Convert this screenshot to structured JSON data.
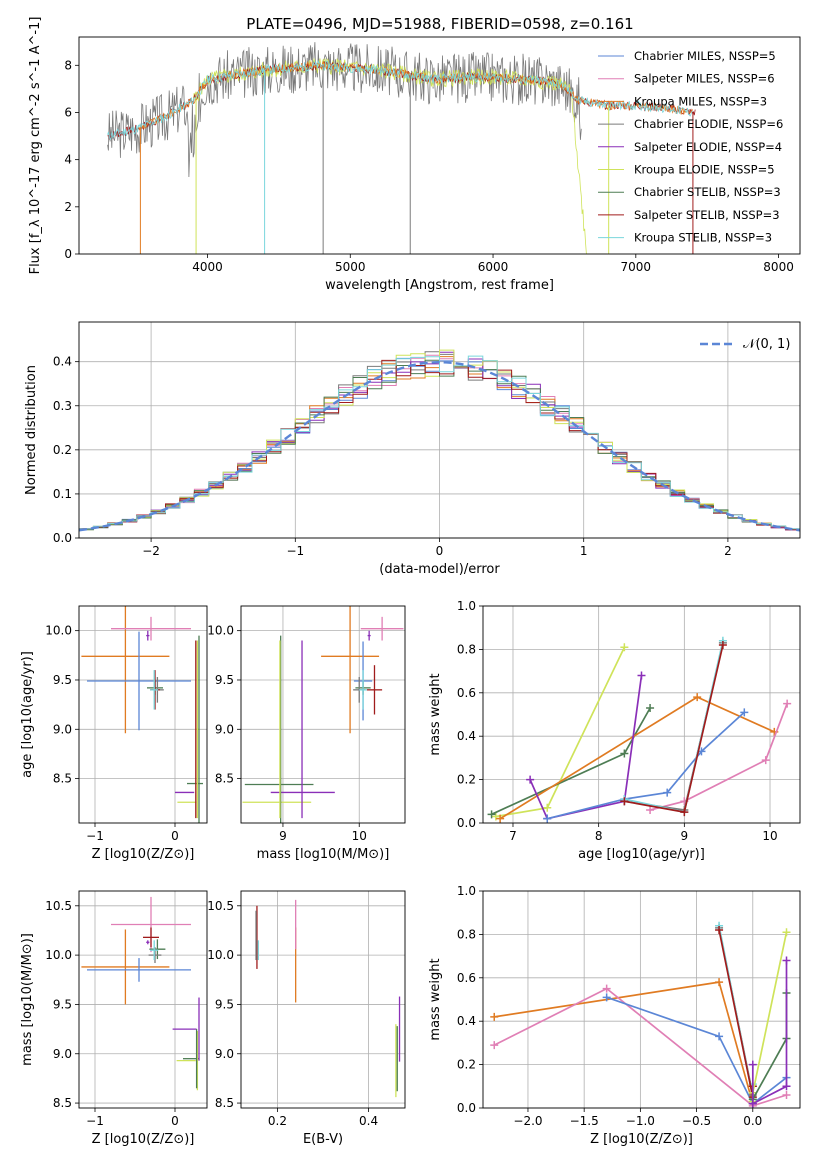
{
  "title": "PLATE=0496, MJD=51988, FIBERID=0598, z=0.161",
  "colors": {
    "chabrier_miles": "#5b86d6",
    "salpeter_miles": "#e07fb5",
    "kroupa_miles": "#e07b22",
    "chabrier_elodie": "#7a7a7a",
    "salpeter_elodie": "#8a2fb8",
    "kroupa_elodie": "#cfe35a",
    "chabrier_stelib": "#4e7d54",
    "salpeter_stelib": "#a01c1c",
    "kroupa_stelib": "#7ad6dc",
    "grid": "#b0b0b0",
    "normal_curve": "#5b86d6"
  },
  "chart_data": [
    {
      "type": "line",
      "panel": "spectrum",
      "xlabel": "wavelength [Angstrom, rest frame]",
      "ylabel": "Flux [f_λ 10^-17 erg cm^-2 s^-1 A^-1]",
      "xlim": [
        3100,
        8150
      ],
      "ylim": [
        0,
        9.2
      ],
      "xticks": [
        "4000",
        "5000",
        "6000",
        "7000",
        "8000"
      ],
      "yticks": [
        "0",
        "2",
        "4",
        "6",
        "8"
      ],
      "legend_position": "top-right",
      "grid": false,
      "series": [
        {
          "name": "Chabrier MILES, N_SSP=5",
          "color_key": "chabrier_miles"
        },
        {
          "name": "Salpeter MILES, N_SSP=6",
          "color_key": "salpeter_miles"
        },
        {
          "name": "Kroupa MILES, N_SSP=3",
          "color_key": "kroupa_miles"
        },
        {
          "name": "Chabrier ELODIE, N_SSP=6",
          "color_key": "chabrier_elodie"
        },
        {
          "name": "Salpeter ELODIE, N_SSP=4",
          "color_key": "salpeter_elodie"
        },
        {
          "name": "Kroupa ELODIE, N_SSP=5",
          "color_key": "kroupa_elodie"
        },
        {
          "name": "Chabrier STELIB, N_SSP=3",
          "color_key": "chabrier_stelib"
        },
        {
          "name": "Salpeter STELIB, N_SSP=3",
          "color_key": "salpeter_stelib"
        },
        {
          "name": "Kroupa STELIB, N_SSP=3",
          "color_key": "kroupa_stelib"
        }
      ],
      "model_continuum": {
        "x": [
          3300,
          3500,
          3700,
          3900,
          4000,
          4200,
          4400,
          4600,
          4800,
          5000,
          5200,
          5400,
          5600,
          5800,
          6000,
          6200,
          6400,
          6500,
          6600,
          6800,
          7000,
          7200,
          7400
        ],
        "y": [
          5.0,
          5.3,
          5.8,
          6.5,
          7.4,
          7.6,
          7.8,
          7.9,
          8.0,
          7.9,
          7.8,
          7.6,
          7.4,
          7.5,
          7.5,
          7.4,
          7.3,
          7.1,
          6.5,
          6.3,
          6.3,
          6.2,
          6.0
        ]
      }
    },
    {
      "type": "line",
      "panel": "residual_histogram",
      "xlabel": "(data-model)/error",
      "ylabel": "Normed distribution",
      "xlim": [
        -2.5,
        2.5
      ],
      "ylim": [
        0,
        0.49
      ],
      "xticks": [
        "-2",
        "-1",
        "0",
        "1",
        "2"
      ],
      "yticks": [
        "0.0",
        "0.1",
        "0.2",
        "0.3",
        "0.4"
      ],
      "grid": true,
      "legend": "𝒩(0, 1)",
      "legend_position": "top-right",
      "curve": "normal pdf, mean 0, sigma 1"
    },
    {
      "type": "scatter",
      "panel": "Z_vs_age",
      "xlabel": "Z [log10(Z/Z⊙)]",
      "ylabel": "age  [log10(age/yr)]",
      "xlim": [
        -1.2,
        0.4
      ],
      "ylim": [
        8.05,
        10.25
      ],
      "xticks": [
        "-1",
        "0"
      ],
      "yticks": [
        "8.5",
        "9.0",
        "9.5",
        "10.0"
      ],
      "grid": true,
      "points": [
        {
          "color_key": "kroupa_miles",
          "x": -0.62,
          "xerr": 0.55,
          "y": 9.74,
          "yerr": 0.78
        },
        {
          "color_key": "chabrier_miles",
          "x": -0.45,
          "xerr": 0.65,
          "y": 9.49,
          "yerr": 0.5
        },
        {
          "color_key": "salpeter_miles",
          "x": -0.3,
          "xerr": 0.5,
          "y": 10.02,
          "yerr": 0.12
        },
        {
          "color_key": "chabrier_stelib",
          "x": -0.25,
          "xerr": 0.1,
          "y": 9.42,
          "yerr": 0.07
        },
        {
          "color_key": "chabrier_elodie",
          "x": -0.22,
          "xerr": 0.08,
          "y": 9.4,
          "yerr": 0.13
        },
        {
          "color_key": "salpeter_stelib",
          "x": -0.25,
          "xerr": 0.06,
          "y": 9.4,
          "yerr": 0.2
        },
        {
          "color_key": "kroupa_stelib",
          "x": -0.26,
          "xerr": 0.05,
          "y": 9.4,
          "yerr": 0.2
        },
        {
          "color_key": "salpeter_elodie",
          "x": -0.34,
          "xerr": 0.02,
          "y": 9.95,
          "yerr": 0.05
        },
        {
          "color_key": "chabrier_stelib",
          "x": 0.25,
          "xerr": 0.1,
          "y": 8.45,
          "yerr": 0.0
        },
        {
          "color_key": "salpeter_elodie",
          "x": 0.12,
          "xerr": 0.12,
          "y": 8.36,
          "yerr": 0.0
        },
        {
          "color_key": "kroupa_elodie",
          "x": 0.15,
          "xerr": 0.12,
          "y": 8.26,
          "yerr": 0.0
        },
        {
          "color_key": "kroupa_elodie",
          "x": 0.28,
          "xerr": 0.02,
          "y": 9.0,
          "yerr": 0.9
        },
        {
          "color_key": "chabrier_stelib",
          "x": 0.3,
          "xerr": 0.0,
          "y": 9.0,
          "yerr": 0.95
        },
        {
          "color_key": "salpeter_stelib",
          "x": 0.26,
          "xerr": 0.0,
          "y": 9.0,
          "yerr": 0.9
        }
      ]
    },
    {
      "type": "scatter",
      "panel": "mass_vs_age",
      "xlabel": "mass [log10(M/M⊙)]",
      "ylabel": "",
      "xlim": [
        8.45,
        10.6
      ],
      "ylim": [
        8.05,
        10.25
      ],
      "xticks": [
        "9",
        "10"
      ],
      "yticks": [
        "8.5",
        "9.0",
        "9.5",
        "10.0"
      ],
      "grid": true,
      "points": [
        {
          "color_key": "kroupa_miles",
          "x": 9.88,
          "xerr": 0.38,
          "y": 9.74,
          "yerr": 0.78
        },
        {
          "color_key": "chabrier_miles",
          "x": 10.05,
          "xerr": 0.12,
          "y": 9.49,
          "yerr": 0.4
        },
        {
          "color_key": "salpeter_miles",
          "x": 10.3,
          "xerr": 0.28,
          "y": 10.02,
          "yerr": 0.12
        },
        {
          "color_key": "chabrier_stelib",
          "x": 10.05,
          "xerr": 0.1,
          "y": 9.42,
          "yerr": 0.07
        },
        {
          "color_key": "chabrier_elodie",
          "x": 10.0,
          "xerr": 0.08,
          "y": 9.4,
          "yerr": 0.13
        },
        {
          "color_key": "salpeter_stelib",
          "x": 10.2,
          "xerr": 0.1,
          "y": 9.4,
          "yerr": 0.25
        },
        {
          "color_key": "kroupa_stelib",
          "x": 10.05,
          "xerr": 0.05,
          "y": 9.4,
          "yerr": 0.2
        },
        {
          "color_key": "salpeter_elodie",
          "x": 10.13,
          "xerr": 0.02,
          "y": 9.95,
          "yerr": 0.05
        },
        {
          "color_key": "chabrier_stelib",
          "x": 8.95,
          "xerr": 0.45,
          "y": 8.44,
          "yerr": 0.0
        },
        {
          "color_key": "salpeter_elodie",
          "x": 9.26,
          "xerr": 0.42,
          "y": 8.36,
          "yerr": 0.0
        },
        {
          "color_key": "kroupa_elodie",
          "x": 8.92,
          "xerr": 0.45,
          "y": 8.26,
          "yerr": 0.0
        },
        {
          "color_key": "chabrier_stelib",
          "x": 8.97,
          "xerr": 0.0,
          "y": 9.0,
          "yerr": 0.95
        },
        {
          "color_key": "salpeter_elodie",
          "x": 9.25,
          "xerr": 0.0,
          "y": 9.0,
          "yerr": 0.9
        },
        {
          "color_key": "kroupa_elodie",
          "x": 8.96,
          "xerr": 0.0,
          "y": 9.0,
          "yerr": 0.9
        }
      ]
    },
    {
      "type": "line",
      "panel": "age_vs_mass_weight",
      "xlabel": "age  [log10(age/yr)]",
      "ylabel": "mass weight",
      "xlim": [
        6.65,
        10.35
      ],
      "ylim": [
        0,
        1.0
      ],
      "xticks": [
        "7",
        "8",
        "9",
        "10"
      ],
      "yticks": [
        "0.0",
        "0.2",
        "0.4",
        "0.6",
        "0.8",
        "1.0"
      ],
      "grid": true,
      "series": [
        {
          "color_key": "kroupa_elodie",
          "x": [
            6.8,
            7.4,
            8.3
          ],
          "y": [
            0.03,
            0.07,
            0.81
          ]
        },
        {
          "color_key": "chabrier_stelib",
          "x": [
            6.75,
            8.3,
            8.6
          ],
          "y": [
            0.04,
            0.32,
            0.53
          ]
        },
        {
          "color_key": "kroupa_miles",
          "x": [
            6.85,
            9.15,
            10.05
          ],
          "y": [
            0.02,
            0.58,
            0.42
          ]
        },
        {
          "color_key": "salpeter_elodie",
          "x": [
            7.2,
            7.4,
            8.3,
            8.5
          ],
          "y": [
            0.2,
            0.02,
            0.1,
            0.68
          ]
        },
        {
          "color_key": "chabrier_miles",
          "x": [
            7.4,
            8.3,
            8.8,
            9.2,
            9.7
          ],
          "y": [
            0.02,
            0.11,
            0.14,
            0.33,
            0.51
          ]
        },
        {
          "color_key": "salpeter_miles",
          "x": [
            8.6,
            9.0,
            9.95,
            10.2
          ],
          "y": [
            0.06,
            0.1,
            0.29,
            0.55
          ]
        },
        {
          "color_key": "chabrier_elodie",
          "x": [
            8.3,
            9.0,
            9.45
          ],
          "y": [
            0.1,
            0.06,
            0.83
          ]
        },
        {
          "color_key": "kroupa_stelib",
          "x": [
            8.3,
            9.0,
            9.45
          ],
          "y": [
            0.11,
            0.05,
            0.84
          ]
        },
        {
          "color_key": "salpeter_stelib",
          "x": [
            8.3,
            9.0,
            9.45
          ],
          "y": [
            0.1,
            0.05,
            0.82
          ]
        }
      ]
    },
    {
      "type": "scatter",
      "panel": "Z_vs_mass",
      "xlabel": "Z [log10(Z/Z⊙)]",
      "ylabel": "mass [log10(M/M⊙)]",
      "xlim": [
        -1.2,
        0.4
      ],
      "ylim": [
        8.45,
        10.65
      ],
      "xticks": [
        "-1",
        "0"
      ],
      "yticks": [
        "8.5",
        "9.0",
        "9.5",
        "10.0",
        "10.5"
      ],
      "grid": true,
      "points": [
        {
          "color_key": "kroupa_miles",
          "x": -0.62,
          "xerr": 0.55,
          "y": 9.88,
          "yerr": 0.38
        },
        {
          "color_key": "chabrier_miles",
          "x": -0.45,
          "xerr": 0.65,
          "y": 9.85,
          "yerr": 0.12
        },
        {
          "color_key": "salpeter_miles",
          "x": -0.3,
          "xerr": 0.5,
          "y": 10.31,
          "yerr": 0.28
        },
        {
          "color_key": "chabrier_stelib",
          "x": -0.22,
          "xerr": 0.1,
          "y": 10.06,
          "yerr": 0.1
        },
        {
          "color_key": "chabrier_elodie",
          "x": -0.25,
          "xerr": 0.08,
          "y": 10.0,
          "yerr": 0.08
        },
        {
          "color_key": "salpeter_stelib",
          "x": -0.3,
          "xerr": 0.1,
          "y": 10.18,
          "yerr": 0.1
        },
        {
          "color_key": "kroupa_stelib",
          "x": -0.26,
          "xerr": 0.05,
          "y": 10.05,
          "yerr": 0.1
        },
        {
          "color_key": "salpeter_elodie",
          "x": -0.34,
          "xerr": 0.02,
          "y": 10.13,
          "yerr": 0.02
        },
        {
          "color_key": "salpeter_elodie",
          "x": 0.12,
          "xerr": 0.15,
          "y": 9.25,
          "yerr": 0.0
        },
        {
          "color_key": "chabrier_stelib",
          "x": 0.2,
          "xerr": 0.1,
          "y": 8.95,
          "yerr": 0.0
        },
        {
          "color_key": "kroupa_elodie",
          "x": 0.14,
          "xerr": 0.12,
          "y": 8.93,
          "yerr": 0.0
        },
        {
          "color_key": "salpeter_elodie",
          "x": 0.3,
          "xerr": 0.0,
          "y": 9.25,
          "yerr": 0.32
        },
        {
          "color_key": "kroupa_elodie",
          "x": 0.28,
          "xerr": 0.0,
          "y": 8.93,
          "yerr": 0.3
        },
        {
          "color_key": "chabrier_stelib",
          "x": 0.27,
          "xerr": 0.0,
          "y": 8.95,
          "yerr": 0.3
        }
      ]
    },
    {
      "type": "scatter",
      "panel": "ebv_vs_mass",
      "xlabel": "E(B-V)",
      "ylabel": "",
      "xlim": [
        0.12,
        0.48
      ],
      "ylim": [
        8.45,
        10.65
      ],
      "xticks": [
        "0.2",
        "0.4"
      ],
      "yticks": [
        "8.5",
        "9.0",
        "9.5",
        "10.0",
        "10.5"
      ],
      "grid": true,
      "points": [
        {
          "color_key": "salpeter_stelib",
          "x": 0.155,
          "xerr": 0.0,
          "y": 10.18,
          "yerr": 0.32
        },
        {
          "color_key": "chabrier_elodie",
          "x": 0.153,
          "xerr": 0.0,
          "y": 10.2,
          "yerr": 0.25
        },
        {
          "color_key": "kroupa_stelib",
          "x": 0.158,
          "xerr": 0.0,
          "y": 10.05,
          "yerr": 0.1
        },
        {
          "color_key": "kroupa_miles",
          "x": 0.24,
          "xerr": 0.0,
          "y": 9.9,
          "yerr": 0.38
        },
        {
          "color_key": "salpeter_miles",
          "x": 0.24,
          "xerr": 0.0,
          "y": 10.31,
          "yerr": 0.25
        },
        {
          "color_key": "salpeter_elodie",
          "x": 0.468,
          "xerr": 0.0,
          "y": 9.25,
          "yerr": 0.33
        },
        {
          "color_key": "kroupa_elodie",
          "x": 0.46,
          "xerr": 0.0,
          "y": 8.93,
          "yerr": 0.37
        },
        {
          "color_key": "chabrier_stelib",
          "x": 0.463,
          "xerr": 0.0,
          "y": 8.95,
          "yerr": 0.33
        }
      ]
    },
    {
      "type": "line",
      "panel": "Z_vs_mass_weight",
      "xlabel": "Z [log10(Z/Z⊙)]",
      "ylabel": "mass weight",
      "xlim": [
        -2.4,
        0.42
      ],
      "ylim": [
        0,
        1.0
      ],
      "xticks": [
        "-2.0",
        "-1.5",
        "-1.0",
        "-0.5",
        "0.0"
      ],
      "yticks": [
        "0.0",
        "0.2",
        "0.4",
        "0.6",
        "0.8",
        "1.0"
      ],
      "grid": true,
      "series": [
        {
          "color_key": "kroupa_miles",
          "x": [
            -2.3,
            -0.3,
            0.0
          ],
          "y": [
            0.42,
            0.58,
            0.02
          ]
        },
        {
          "color_key": "salpeter_miles",
          "x": [
            -2.3,
            -1.3,
            0.0,
            0.3
          ],
          "y": [
            0.29,
            0.55,
            0.01,
            0.06
          ]
        },
        {
          "color_key": "chabrier_miles",
          "x": [
            -1.3,
            -0.3,
            0.0,
            0.3
          ],
          "y": [
            0.51,
            0.33,
            0.02,
            0.14
          ]
        },
        {
          "color_key": "chabrier_elodie",
          "x": [
            -0.3,
            0.0,
            0.0
          ],
          "y": [
            0.83,
            0.06,
            0.1
          ]
        },
        {
          "color_key": "kroupa_stelib",
          "x": [
            -0.3,
            0.0,
            0.0
          ],
          "y": [
            0.84,
            0.05,
            0.11
          ]
        },
        {
          "color_key": "salpeter_stelib",
          "x": [
            -0.3,
            0.0,
            0.0
          ],
          "y": [
            0.82,
            0.05,
            0.1
          ]
        },
        {
          "color_key": "kroupa_elodie",
          "x": [
            0.0,
            0.0,
            0.3
          ],
          "y": [
            0.03,
            0.07,
            0.81
          ]
        },
        {
          "color_key": "chabrier_stelib",
          "x": [
            0.0,
            0.3,
            0.3
          ],
          "y": [
            0.04,
            0.32,
            0.53
          ]
        },
        {
          "color_key": "salpeter_elodie",
          "x": [
            0.0,
            0.0,
            0.3,
            0.3
          ],
          "y": [
            0.2,
            0.02,
            0.1,
            0.68
          ]
        }
      ]
    }
  ]
}
